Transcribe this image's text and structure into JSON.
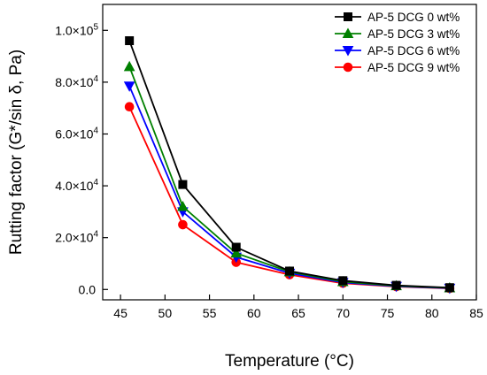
{
  "chart_data": {
    "type": "line",
    "xlabel": "Temperature (°C)",
    "ylabel": "Rutting factor (G*/sin δ, Pa)",
    "xlim": [
      43,
      85
    ],
    "ylim": [
      -4000,
      110000
    ],
    "xticks": [
      45,
      50,
      55,
      60,
      65,
      70,
      75,
      80,
      85
    ],
    "xtick_labels": [
      "45",
      "50",
      "55",
      "60",
      "65",
      "70",
      "75",
      "80",
      "85"
    ],
    "yticks": [
      0,
      20000,
      40000,
      60000,
      80000,
      100000
    ],
    "ytick_labels": [
      {
        "mantissa": "0.0",
        "exp": ""
      },
      {
        "mantissa": "2.0×10",
        "exp": "4"
      },
      {
        "mantissa": "4.0×10",
        "exp": "4"
      },
      {
        "mantissa": "6.0×10",
        "exp": "4"
      },
      {
        "mantissa": "8.0×10",
        "exp": "4"
      },
      {
        "mantissa": "1.0×10",
        "exp": "5"
      }
    ],
    "legend_position": "top-right",
    "x": [
      46,
      52,
      58,
      64,
      70,
      76,
      82
    ],
    "series": [
      {
        "name": "AP-5 DCG 0 wt%",
        "color": "#000000",
        "marker": "square",
        "values": [
          96000,
          40500,
          16300,
          7100,
          3400,
          1600,
          700
        ]
      },
      {
        "name": "AP-5 DCG 3 wt%",
        "color": "#008000",
        "marker": "triangle-up",
        "values": [
          86000,
          32000,
          14000,
          6800,
          3000,
          1400,
          600
        ]
      },
      {
        "name": "AP-5 DCG 6 wt%",
        "color": "#0000ff",
        "marker": "triangle-down",
        "values": [
          78500,
          30000,
          12500,
          6300,
          2700,
          1200,
          500
        ]
      },
      {
        "name": "AP-5 DCG 9 wt%",
        "color": "#ff0000",
        "marker": "circle",
        "values": [
          70500,
          25000,
          10500,
          5700,
          2400,
          1100,
          400
        ]
      }
    ]
  }
}
